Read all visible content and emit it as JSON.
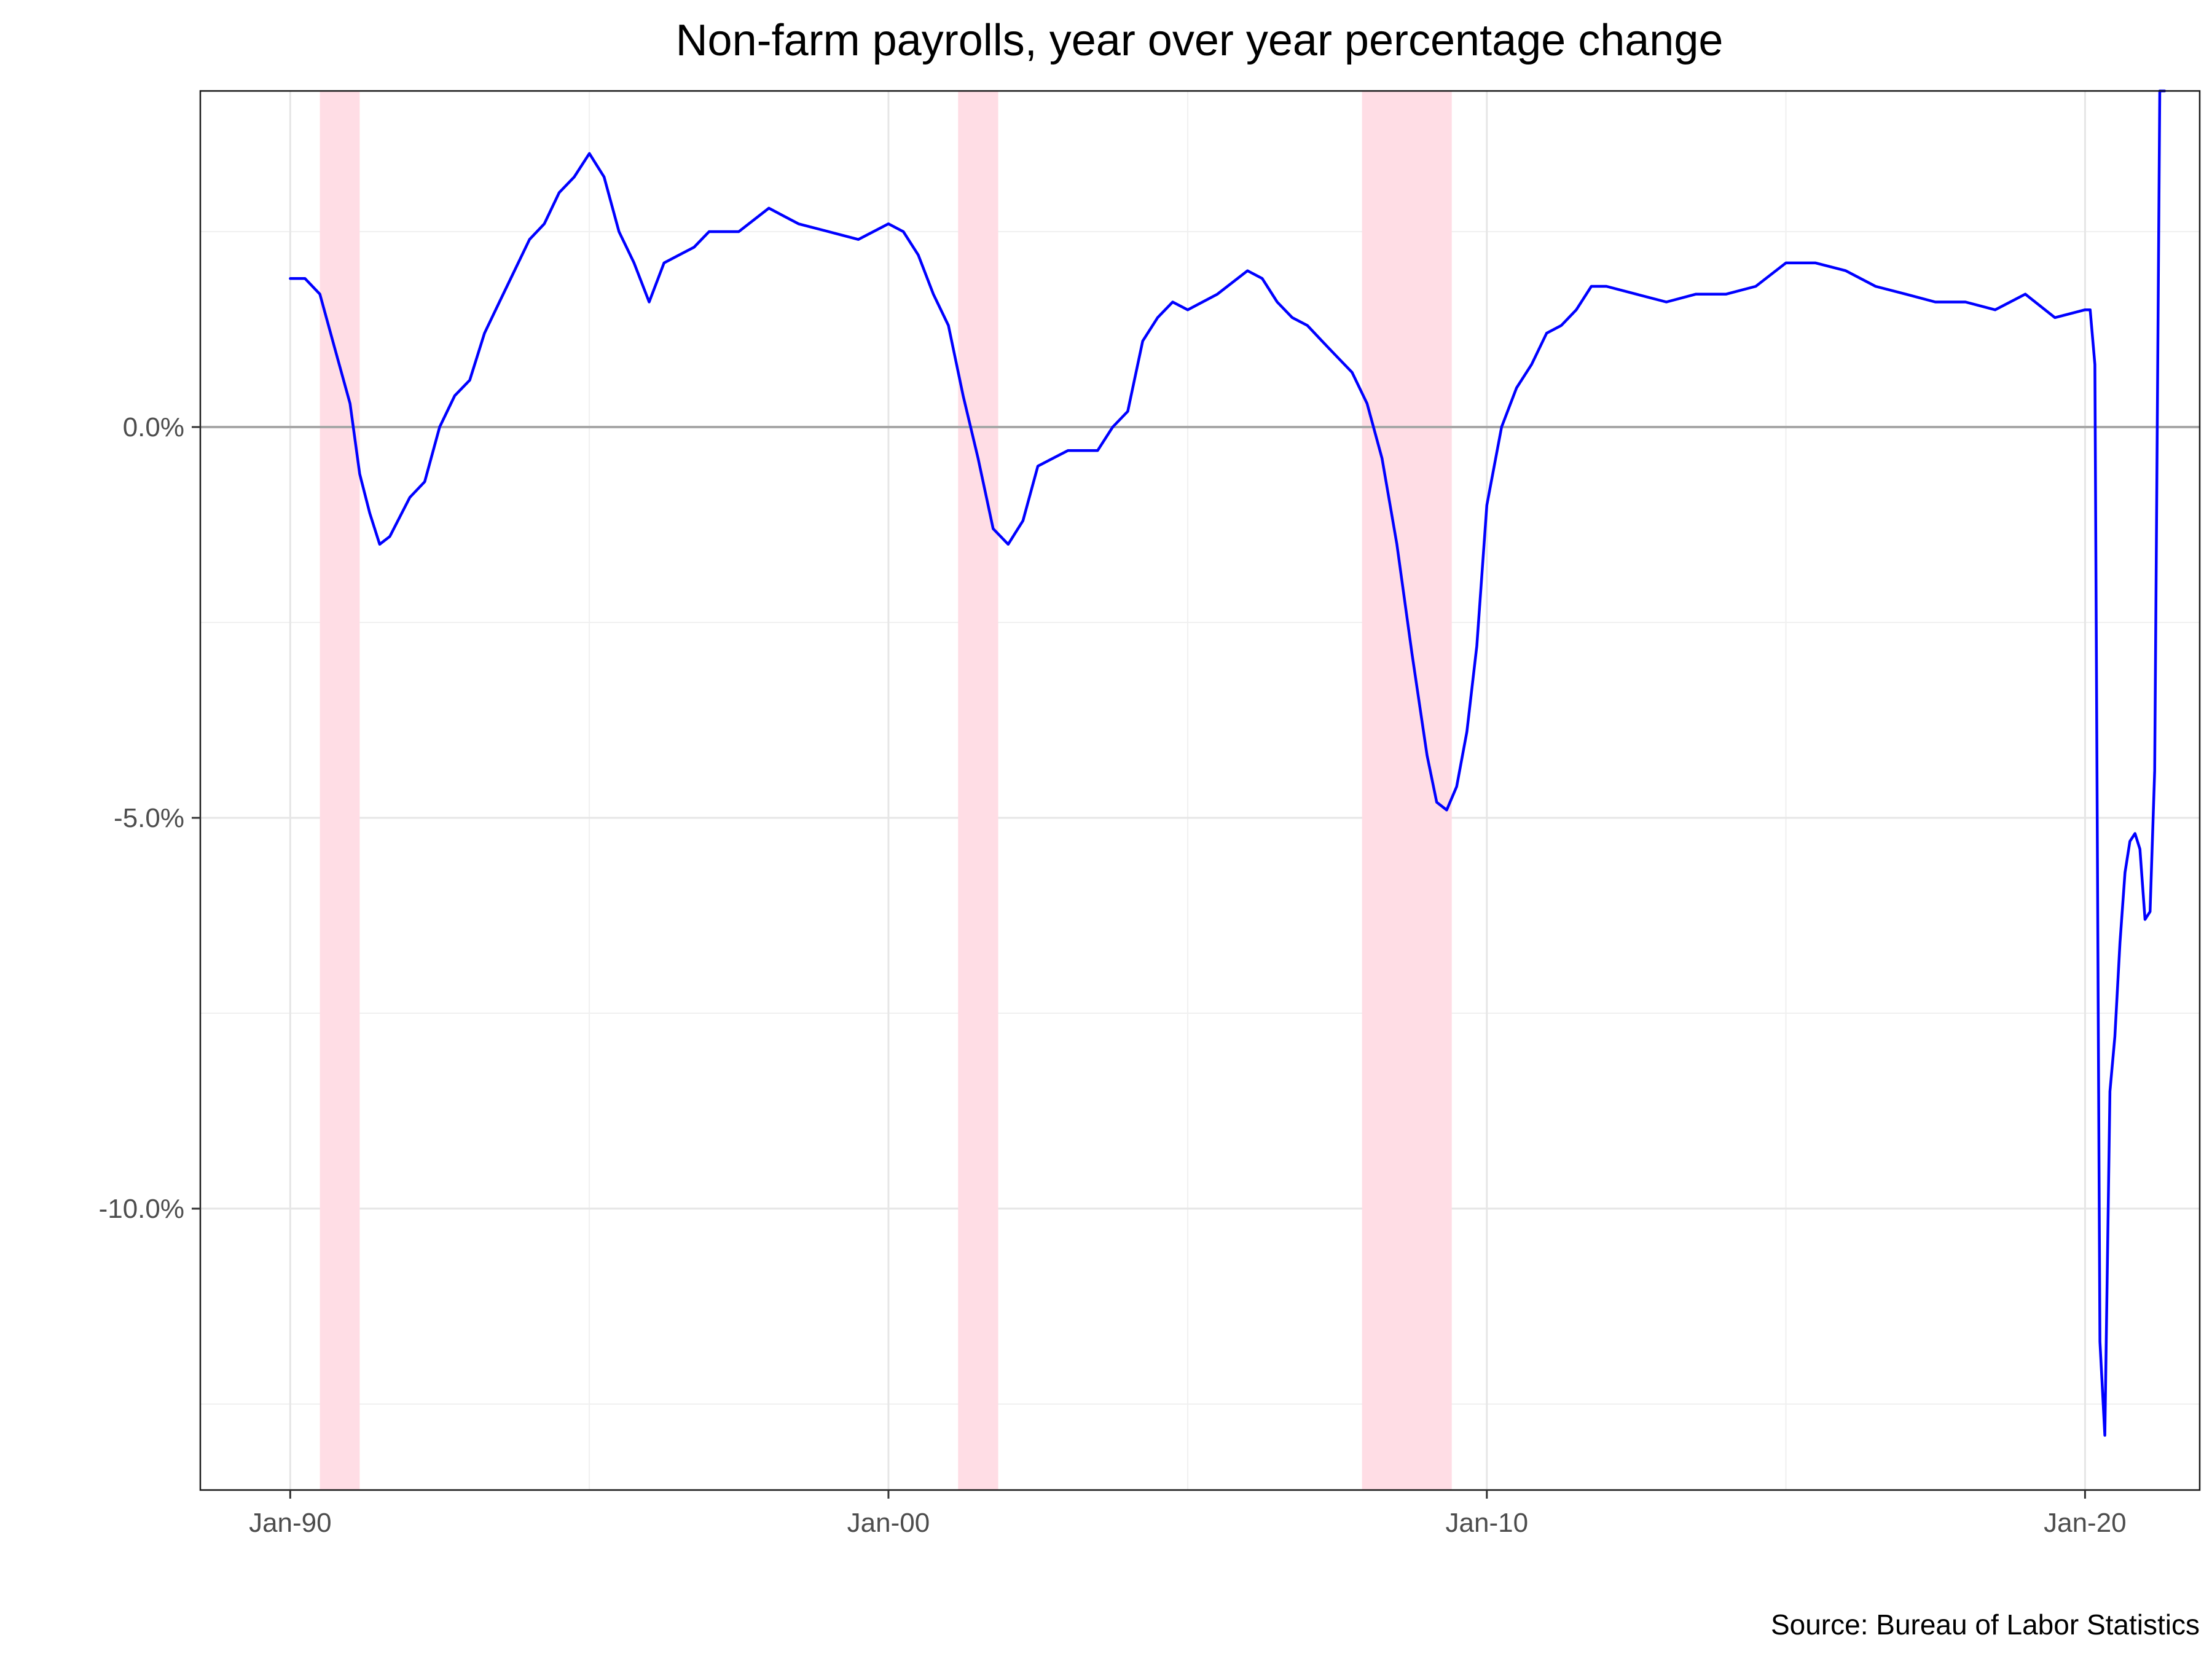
{
  "chart_data": {
    "type": "line",
    "title": "Non-farm payrolls, year over year percentage change",
    "caption": "Source: Bureau of Labor Statistics",
    "xlabel": "",
    "ylabel": "",
    "xlim": [
      "1988-07-01",
      "2021-12-01"
    ],
    "ylim": [
      -13.6,
      4.3
    ],
    "x_ticks": [
      {
        "date": "1990-01-01",
        "label": "Jan-90"
      },
      {
        "date": "2000-01-01",
        "label": "Jan-00"
      },
      {
        "date": "2010-01-01",
        "label": "Jan-10"
      },
      {
        "date": "2020-01-01",
        "label": "Jan-20"
      }
    ],
    "x_minor_ticks": [
      "1995-01-01",
      "2005-01-01",
      "2015-01-01"
    ],
    "y_ticks": [
      {
        "value": 0,
        "label": "0.0%"
      },
      {
        "value": -5,
        "label": "-5.0%"
      },
      {
        "value": -10,
        "label": "-10.0%"
      }
    ],
    "y_minor_ticks": [
      2.5,
      -2.5,
      -7.5,
      -12.5
    ],
    "grid": true,
    "reference_line": {
      "value": 0,
      "color": "#a8a8a8"
    },
    "line_color": "#0000ff",
    "recession_color": "#ffdde5",
    "recessions": [
      {
        "start": "1990-07-01",
        "end": "1991-03-01"
      },
      {
        "start": "2001-03-01",
        "end": "2001-11-01"
      },
      {
        "start": "2007-12-01",
        "end": "2009-06-01"
      }
    ],
    "series": [
      {
        "x": [
          "1990-01-01",
          "1990-04-01",
          "1990-07-01",
          "1990-10-01",
          "1991-01-01",
          "1991-03-01",
          "1991-05-01",
          "1991-07-01",
          "1991-09-01",
          "1992-01-01",
          "1992-04-01",
          "1992-07-01",
          "1992-10-01",
          "1993-01-01",
          "1993-04-01",
          "1993-07-01",
          "1993-10-01",
          "1994-01-01",
          "1994-04-01",
          "1994-07-01",
          "1994-10-01",
          "1995-01-01",
          "1995-04-01",
          "1995-07-01",
          "1995-10-01",
          "1996-01-01",
          "1996-04-01",
          "1996-07-01",
          "1996-10-01",
          "1997-01-01",
          "1997-07-01",
          "1998-01-01",
          "1998-07-01",
          "1999-01-01",
          "1999-07-01",
          "2000-01-01",
          "2000-04-01",
          "2000-07-01",
          "2000-10-01",
          "2001-01-01",
          "2001-04-01",
          "2001-07-01",
          "2001-10-01",
          "2002-01-01",
          "2002-04-01",
          "2002-07-01",
          "2002-10-01",
          "2003-01-01",
          "2003-04-01",
          "2003-07-01",
          "2003-10-01",
          "2004-01-01",
          "2004-04-01",
          "2004-07-01",
          "2004-10-01",
          "2005-01-01",
          "2005-07-01",
          "2006-01-01",
          "2006-04-01",
          "2006-07-01",
          "2006-10-01",
          "2007-01-01",
          "2007-04-01",
          "2007-07-01",
          "2007-10-01",
          "2008-01-01",
          "2008-04-01",
          "2008-07-01",
          "2008-10-01",
          "2009-01-01",
          "2009-03-01",
          "2009-05-01",
          "2009-07-01",
          "2009-09-01",
          "2009-11-01",
          "2010-01-01",
          "2010-04-01",
          "2010-07-01",
          "2010-10-01",
          "2011-01-01",
          "2011-04-01",
          "2011-07-01",
          "2011-10-01",
          "2012-01-01",
          "2012-07-01",
          "2013-01-01",
          "2013-07-01",
          "2014-01-01",
          "2014-07-01",
          "2015-01-01",
          "2015-07-01",
          "2016-01-01",
          "2016-07-01",
          "2017-01-01",
          "2017-07-01",
          "2018-01-01",
          "2018-07-01",
          "2019-01-01",
          "2019-07-01",
          "2020-01-01",
          "2020-02-01",
          "2020-03-01",
          "2020-04-01",
          "2020-05-01",
          "2020-06-01",
          "2020-07-01",
          "2020-08-01",
          "2020-09-01",
          "2020-10-01",
          "2020-11-01",
          "2020-12-01",
          "2021-01-01",
          "2021-02-01",
          "2021-03-01",
          "2021-04-01",
          "2021-05-01"
        ],
        "y": [
          1.9,
          1.9,
          1.7,
          1.0,
          0.3,
          -0.6,
          -1.1,
          -1.5,
          -1.4,
          -0.9,
          -0.7,
          0.0,
          0.4,
          0.6,
          1.2,
          1.6,
          2.0,
          2.4,
          2.6,
          3.0,
          3.2,
          3.5,
          3.2,
          2.5,
          2.1,
          1.6,
          2.1,
          2.2,
          2.3,
          2.5,
          2.5,
          2.8,
          2.6,
          2.5,
          2.4,
          2.6,
          2.5,
          2.2,
          1.7,
          1.3,
          0.4,
          -0.4,
          -1.3,
          -1.5,
          -1.2,
          -0.5,
          -0.4,
          -0.3,
          -0.3,
          -0.3,
          0.0,
          0.2,
          1.1,
          1.4,
          1.6,
          1.5,
          1.7,
          2.0,
          1.9,
          1.6,
          1.4,
          1.3,
          1.1,
          0.9,
          0.7,
          0.3,
          -0.4,
          -1.5,
          -2.9,
          -4.2,
          -4.8,
          -4.9,
          -4.6,
          -3.9,
          -2.8,
          -1.0,
          0.0,
          0.5,
          0.8,
          1.2,
          1.3,
          1.5,
          1.8,
          1.8,
          1.7,
          1.6,
          1.7,
          1.7,
          1.8,
          2.1,
          2.1,
          2.0,
          1.8,
          1.7,
          1.6,
          1.6,
          1.5,
          1.7,
          1.4,
          1.5,
          1.5,
          0.8,
          -11.7,
          -12.9,
          -8.5,
          -7.8,
          -6.6,
          -5.7,
          -5.3,
          -5.2,
          -5.4,
          -6.3,
          -6.2,
          -4.4,
          4.3,
          4.3
        ]
      }
    ]
  }
}
